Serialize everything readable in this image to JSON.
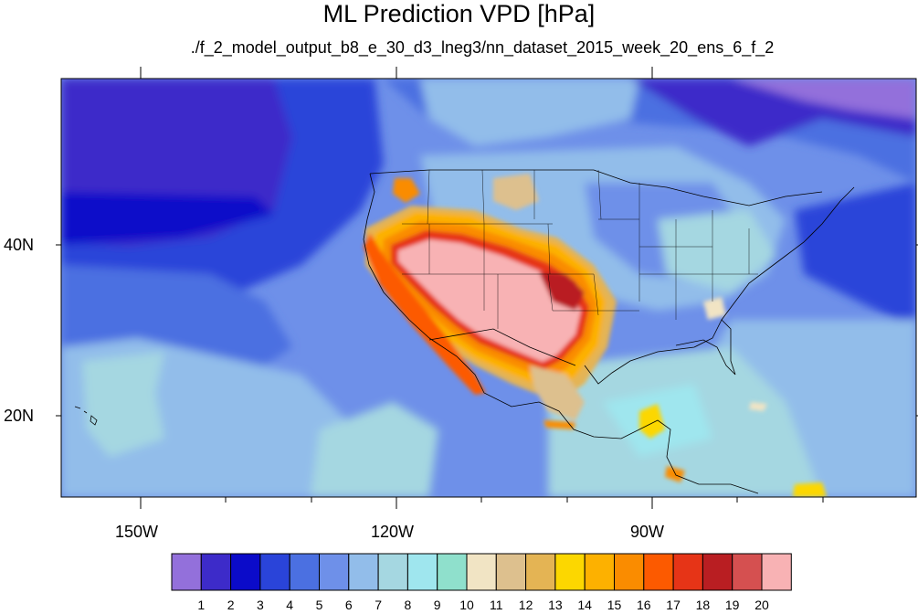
{
  "title": "ML Prediction VPD [hPa]",
  "subtitle": "./f_2_model_output_b8_e_30_d3_lneg3/nn_dataset_2015_week_20_ens_6_f_2",
  "axes": {
    "y_labels": [
      "40N",
      "20N"
    ],
    "x_labels": [
      "150W",
      "120W",
      "90W"
    ]
  },
  "colorbar": {
    "labels": [
      "1",
      "2",
      "3",
      "4",
      "5",
      "6",
      "7",
      "8",
      "9",
      "10",
      "11",
      "12",
      "13",
      "14",
      "15",
      "16",
      "17",
      "18",
      "19",
      "20"
    ],
    "colors": [
      "#9370DB",
      "#3D2BC9",
      "#0B0BC9",
      "#2A44D9",
      "#4B70E1",
      "#6E90E9",
      "#92BDEA",
      "#A5D7E1",
      "#9FE6EE",
      "#8FE0CC",
      "#F1E4C4",
      "#DDC08E",
      "#E4B454",
      "#FCD700",
      "#FDB100",
      "#FA8C00",
      "#FC5A00",
      "#E63417",
      "#B91E22",
      "#D55050",
      "#F8B2B4"
    ]
  }
}
